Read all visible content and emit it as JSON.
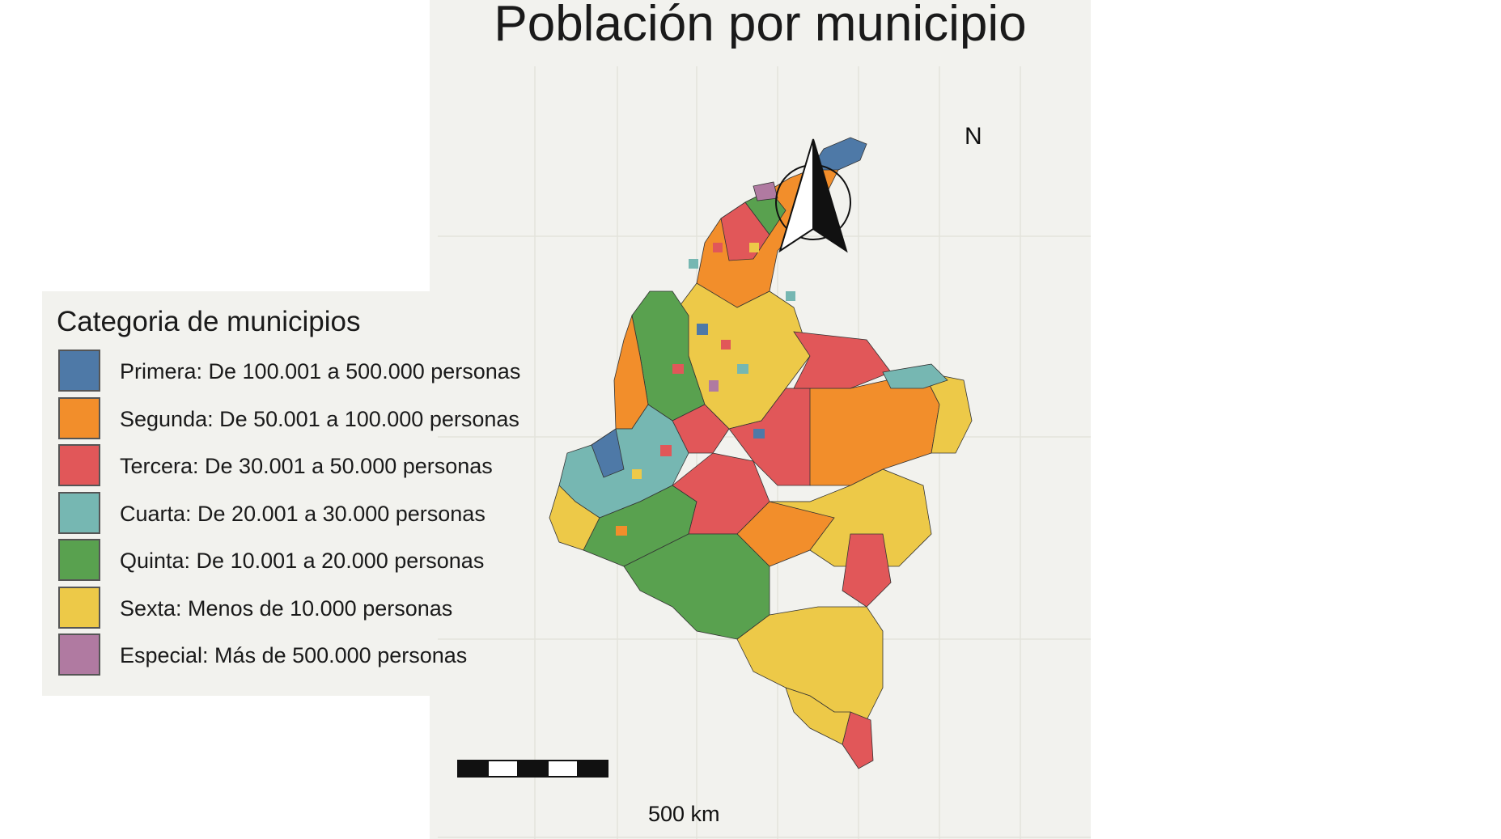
{
  "title": "Población por municipio",
  "legend": {
    "title": "Categoria de municipios",
    "items": [
      {
        "label": "Primera: De 100.001 a 500.000 personas",
        "color": "#4e79a7"
      },
      {
        "label": "Segunda: De 50.001 a 100.000 personas",
        "color": "#f28e2b"
      },
      {
        "label": "Tercera: De 30.001 a 50.000 personas",
        "color": "#e15759"
      },
      {
        "label": "Cuarta: De 20.001 a 30.000 personas",
        "color": "#76b7b2"
      },
      {
        "label": "Quinta: De 10.001 a 20.000 personas",
        "color": "#59a14f"
      },
      {
        "label": "Sexta: Menos de 10.000 personas",
        "color": "#edc948"
      },
      {
        "label": "Especial: Más de 500.000 personas",
        "color": "#b07aa1"
      }
    ]
  },
  "north_arrow": {
    "label": "N"
  },
  "scale_bar": {
    "label": "500 km"
  }
}
